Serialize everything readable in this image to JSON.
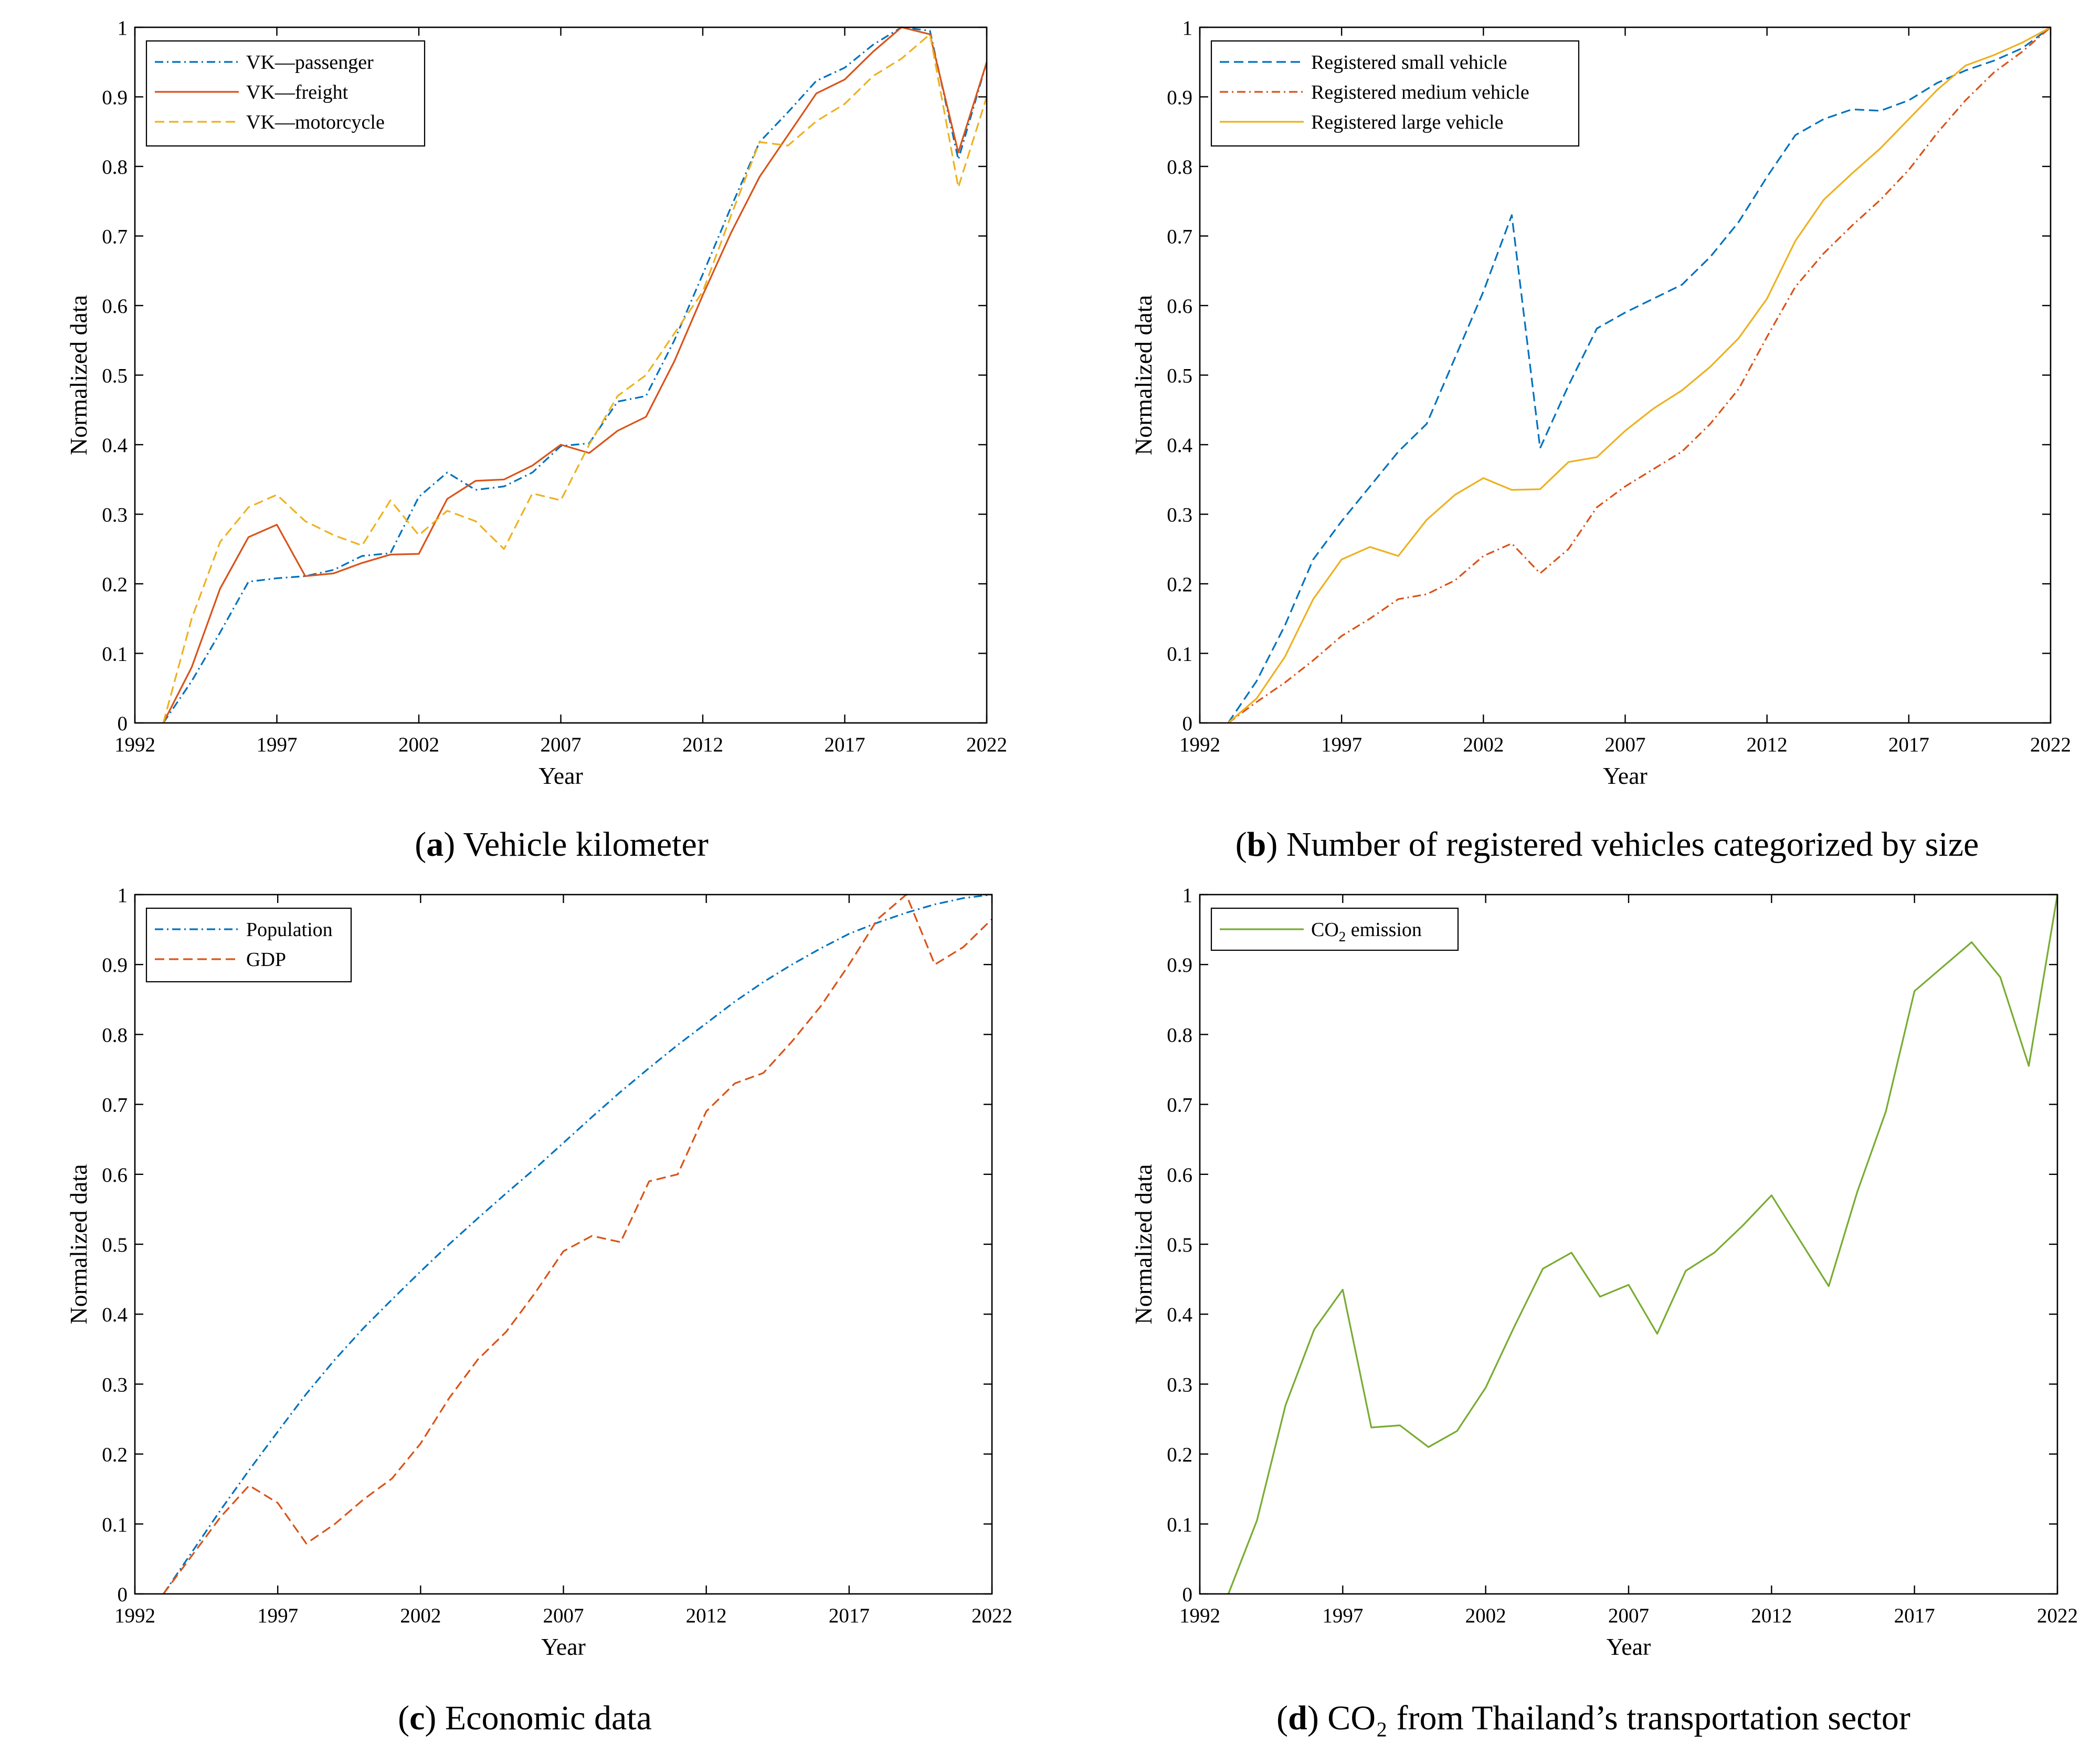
{
  "chart_data": [
    {
      "type": "line",
      "title": "",
      "xlabel": "Year",
      "ylabel": "Normalized data",
      "xlim": [
        1992,
        2022
      ],
      "ylim": [
        0,
        1
      ],
      "xticks": [
        1992,
        1997,
        2002,
        2007,
        2012,
        2017,
        2022
      ],
      "yticks": [
        0,
        0.1,
        0.2,
        0.3,
        0.4,
        0.5,
        0.6,
        0.7,
        0.8,
        0.9,
        1
      ],
      "ytick_labels": [
        "0",
        "0.1",
        "0.2",
        "0.3",
        "0.4",
        "0.5",
        "0.6",
        "0.7",
        "0.8",
        "0.9",
        "1"
      ],
      "legend_position": "top-left",
      "caption": {
        "prefix": "(",
        "letter": "a",
        "suffix": ") Vehicle kilometer"
      },
      "x": [
        1993,
        1994,
        1995,
        1996,
        1997,
        1998,
        1999,
        2000,
        2001,
        2002,
        2003,
        2004,
        2005,
        2006,
        2007,
        2008,
        2009,
        2010,
        2011,
        2012,
        2013,
        2014,
        2015,
        2016,
        2017,
        2018,
        2019,
        2020,
        2021,
        2022
      ],
      "series": [
        {
          "name": "VK—passenger",
          "color": "#0072BD",
          "dash": "dashdot",
          "values": [
            0,
            0.06,
            0.13,
            0.203,
            0.208,
            0.211,
            0.22,
            0.24,
            0.244,
            0.325,
            0.36,
            0.335,
            0.34,
            0.36,
            0.398,
            0.402,
            0.462,
            0.47,
            0.55,
            0.645,
            0.742,
            0.835,
            0.878,
            0.923,
            0.942,
            0.975,
            1.0,
            0.995,
            0.81,
            0.95
          ]
        },
        {
          "name": "VK—freight",
          "color": "#D95319",
          "dash": "solid",
          "values": [
            0,
            0.08,
            0.193,
            0.267,
            0.285,
            0.211,
            0.215,
            0.23,
            0.242,
            0.243,
            0.322,
            0.348,
            0.35,
            0.37,
            0.4,
            0.388,
            0.42,
            0.44,
            0.52,
            0.615,
            0.705,
            0.785,
            0.845,
            0.905,
            0.925,
            0.965,
            1.0,
            0.99,
            0.82,
            0.95
          ]
        },
        {
          "name": "VK—motorcycle",
          "color": "#EDB120",
          "dash": "dashed",
          "values": [
            0,
            0.15,
            0.26,
            0.31,
            0.328,
            0.29,
            0.27,
            0.255,
            0.32,
            0.27,
            0.305,
            0.29,
            0.25,
            0.33,
            0.32,
            0.4,
            0.47,
            0.5,
            0.56,
            0.62,
            0.73,
            0.835,
            0.83,
            0.865,
            0.89,
            0.93,
            0.955,
            0.99,
            0.77,
            0.9
          ]
        }
      ]
    },
    {
      "type": "line",
      "title": "",
      "xlabel": "Year",
      "ylabel": "Normalized data",
      "xlim": [
        1992,
        2022
      ],
      "ylim": [
        0,
        1
      ],
      "xticks": [
        1992,
        1997,
        2002,
        2007,
        2012,
        2017,
        2022
      ],
      "yticks": [
        0,
        0.1,
        0.2,
        0.3,
        0.4,
        0.5,
        0.6,
        0.7,
        0.8,
        0.9,
        1
      ],
      "ytick_labels": [
        "0",
        "0.1",
        "0.2",
        "0.3",
        "0.4",
        "0.5",
        "0.6",
        "0.7",
        "0.8",
        "0.9",
        "1"
      ],
      "legend_position": "top-left",
      "caption": {
        "prefix": "(",
        "letter": "b",
        "suffix": ") Number of registered vehicles categorized by size"
      },
      "x": [
        1993,
        1994,
        1995,
        1996,
        1997,
        1998,
        1999,
        2000,
        2001,
        2002,
        2003,
        2004,
        2005,
        2006,
        2007,
        2008,
        2009,
        2010,
        2011,
        2012,
        2013,
        2014,
        2015,
        2016,
        2017,
        2018,
        2019,
        2020,
        2021,
        2022
      ],
      "series": [
        {
          "name": "Registered small vehicle",
          "color": "#0072BD",
          "dash": "dashed",
          "values": [
            0,
            0.06,
            0.14,
            0.235,
            0.29,
            0.34,
            0.39,
            0.43,
            0.525,
            0.62,
            0.73,
            0.395,
            0.485,
            0.567,
            0.59,
            0.61,
            0.63,
            0.67,
            0.72,
            0.785,
            0.845,
            0.868,
            0.882,
            0.88,
            0.895,
            0.92,
            0.938,
            0.952,
            0.97,
            1.0
          ]
        },
        {
          "name": "Registered medium vehicle",
          "color": "#D95319",
          "dash": "dashdot",
          "values": [
            0,
            0.03,
            0.058,
            0.09,
            0.125,
            0.15,
            0.178,
            0.185,
            0.205,
            0.24,
            0.258,
            0.215,
            0.25,
            0.31,
            0.34,
            0.365,
            0.39,
            0.43,
            0.48,
            0.555,
            0.627,
            0.675,
            0.715,
            0.752,
            0.795,
            0.848,
            0.895,
            0.935,
            0.965,
            1.0
          ]
        },
        {
          "name": "Registered large vehicle",
          "color": "#EDB120",
          "dash": "solid",
          "values": [
            0,
            0.035,
            0.095,
            0.178,
            0.235,
            0.253,
            0.24,
            0.292,
            0.328,
            0.352,
            0.335,
            0.336,
            0.375,
            0.382,
            0.42,
            0.452,
            0.478,
            0.512,
            0.553,
            0.61,
            0.693,
            0.752,
            0.79,
            0.826,
            0.868,
            0.91,
            0.945,
            0.96,
            0.978,
            1.0
          ]
        }
      ]
    },
    {
      "type": "line",
      "title": "",
      "xlabel": "Year",
      "ylabel": "Normalized data",
      "xlim": [
        1992,
        2022
      ],
      "ylim": [
        0,
        1
      ],
      "xticks": [
        1992,
        1997,
        2002,
        2007,
        2012,
        2017,
        2022
      ],
      "yticks": [
        0,
        0.1,
        0.2,
        0.3,
        0.4,
        0.5,
        0.6,
        0.7,
        0.8,
        0.9,
        1
      ],
      "ytick_labels": [
        "0",
        "0.1",
        "0.2",
        "0.3",
        "0.4",
        "0.5",
        "0.6",
        "0.7",
        "0.8",
        "0.9",
        "1"
      ],
      "legend_position": "top-left",
      "caption": {
        "prefix": "(",
        "letter": "c",
        "suffix": ") Economic data"
      },
      "x": [
        1993,
        1994,
        1995,
        1996,
        1997,
        1998,
        1999,
        2000,
        2001,
        2002,
        2003,
        2004,
        2005,
        2006,
        2007,
        2008,
        2009,
        2010,
        2011,
        2012,
        2013,
        2014,
        2015,
        2016,
        2017,
        2018,
        2019,
        2020,
        2021,
        2022
      ],
      "series": [
        {
          "name": "Population",
          "color": "#0072BD",
          "dash": "dashdot",
          "values": [
            0,
            0.06,
            0.12,
            0.177,
            0.232,
            0.286,
            0.335,
            0.38,
            0.421,
            0.461,
            0.5,
            0.537,
            0.573,
            0.608,
            0.645,
            0.682,
            0.718,
            0.752,
            0.785,
            0.816,
            0.847,
            0.875,
            0.9,
            0.923,
            0.944,
            0.96,
            0.974,
            0.986,
            0.995,
            1.0
          ]
        },
        {
          "name": "GDP",
          "color": "#D95319",
          "dash": "dashed",
          "values": [
            0,
            0.055,
            0.11,
            0.155,
            0.13,
            0.072,
            0.1,
            0.135,
            0.165,
            0.215,
            0.28,
            0.335,
            0.375,
            0.43,
            0.49,
            0.512,
            0.503,
            0.59,
            0.6,
            0.69,
            0.73,
            0.745,
            0.79,
            0.84,
            0.9,
            0.965,
            1.0,
            0.9,
            0.925,
            0.965
          ]
        }
      ]
    },
    {
      "type": "line",
      "title": "",
      "xlabel": "Year",
      "ylabel": "Normalized data",
      "xlim": [
        1992,
        2022
      ],
      "ylim": [
        0,
        1
      ],
      "xticks": [
        1992,
        1997,
        2002,
        2007,
        2012,
        2017,
        2022
      ],
      "yticks": [
        0,
        0.1,
        0.2,
        0.3,
        0.4,
        0.5,
        0.6,
        0.7,
        0.8,
        0.9,
        1
      ],
      "ytick_labels": [
        "0",
        "0.1",
        "0.2",
        "0.3",
        "0.4",
        "0.5",
        "0.6",
        "0.7",
        "0.8",
        "0.9",
        "1"
      ],
      "legend_position": "top-left",
      "caption": {
        "prefix": "(",
        "letter": "d",
        "suffix": ") CO₂ from Thailand’s transportation sector"
      },
      "x": [
        1993,
        1994,
        1995,
        1996,
        1997,
        1998,
        1999,
        2000,
        2001,
        2002,
        2003,
        2004,
        2005,
        2006,
        2007,
        2008,
        2009,
        2010,
        2011,
        2012,
        2013,
        2014,
        2015,
        2016,
        2017,
        2018,
        2019,
        2020,
        2021,
        2022
      ],
      "series": [
        {
          "name": "CO",
          "subscript": "2",
          "name_suffix": " emission",
          "color": "#77AC30",
          "dash": "solid",
          "values": [
            0,
            0.105,
            0.27,
            0.378,
            0.435,
            0.238,
            0.241,
            0.21,
            0.233,
            0.295,
            0.382,
            0.465,
            0.488,
            0.425,
            0.442,
            0.372,
            0.462,
            0.488,
            0.527,
            0.57,
            0.505,
            0.44,
            0.575,
            0.69,
            0.862,
            0.897,
            0.932,
            0.882,
            0.755,
            1.0
          ]
        }
      ]
    }
  ]
}
